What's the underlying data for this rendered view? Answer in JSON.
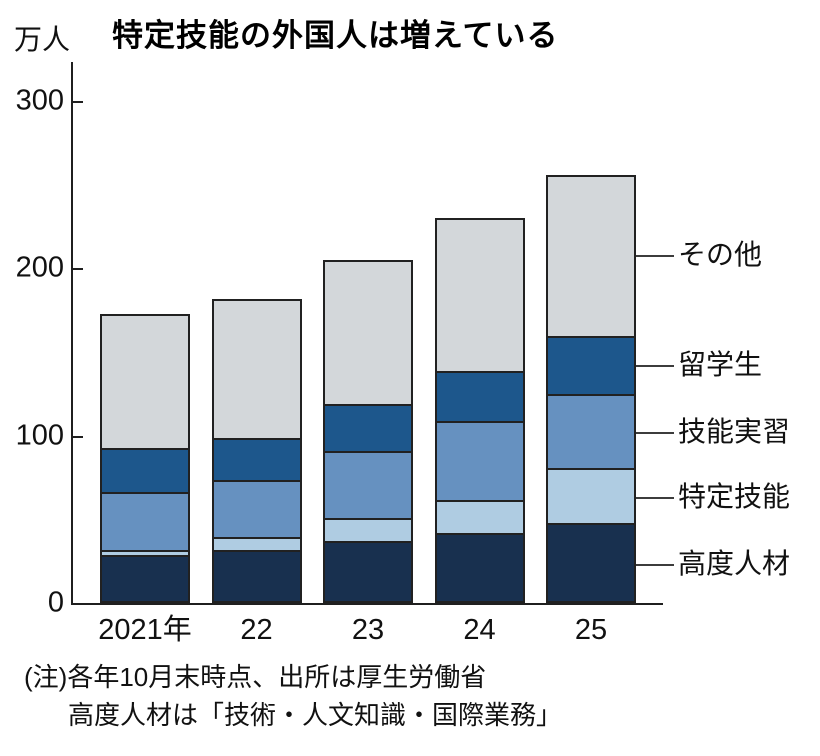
{
  "title": "特定技能の外国人は増えている",
  "y_axis_unit": "万人",
  "notes": {
    "line1": "(注)各年10月末時点、出所は厚生労働省",
    "line2": "高度人材は「技術・人文知識・国際業務」"
  },
  "chart_data": {
    "type": "bar",
    "stacked": true,
    "title": "特定技能の外国人は増えている",
    "xlabel": "",
    "ylabel": "万人",
    "ylim": [
      0,
      300
    ],
    "yticks": [
      0,
      100,
      200,
      300
    ],
    "grid": false,
    "legend_position": "right-callouts",
    "categories": [
      "2021年",
      "22",
      "23",
      "24",
      "25"
    ],
    "series": [
      {
        "name": "高度人材",
        "slug": "kodo-jinzai",
        "color": "#18304f",
        "values": [
          28,
          31,
          36,
          41,
          47
        ]
      },
      {
        "name": "特定技能",
        "slug": "tokutei-gino",
        "color": "#afcce2",
        "values": [
          3,
          8,
          14,
          20,
          33
        ]
      },
      {
        "name": "技能実習",
        "slug": "gino-jisshu",
        "color": "#6691c0",
        "values": [
          35,
          34,
          41,
          48,
          45
        ]
      },
      {
        "name": "留学生",
        "slug": "ryugakusei",
        "color": "#1d578c",
        "values": [
          27,
          26,
          28,
          30,
          35
        ]
      },
      {
        "name": "その他",
        "slug": "sonota",
        "color": "#d3d7da",
        "values": [
          80,
          83,
          86,
          91,
          96
        ]
      }
    ],
    "totals": [
      173,
      182,
      205,
      230,
      256
    ]
  }
}
